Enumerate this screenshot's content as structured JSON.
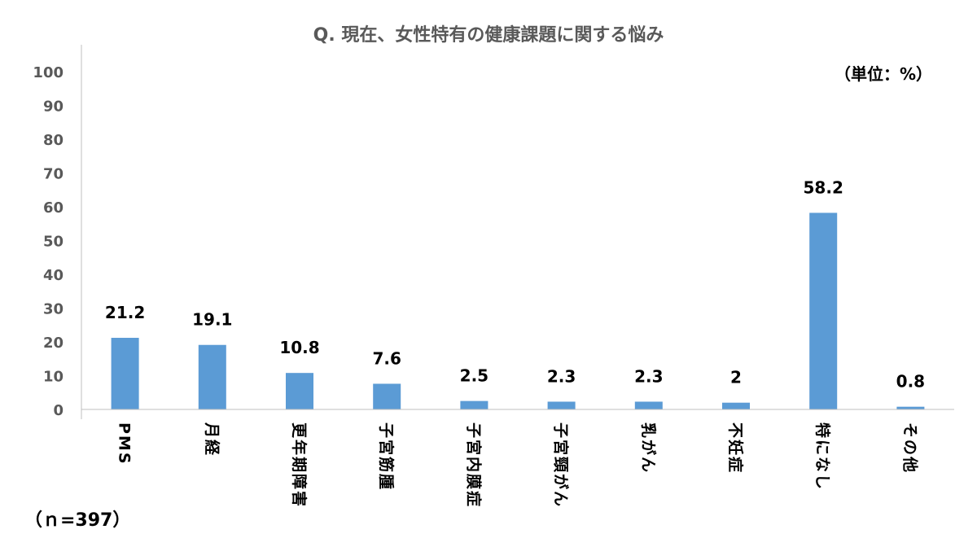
{
  "chart_data": {
    "type": "bar",
    "title": "Q. 現在、女性特有の健康課題に関する悩み",
    "unit_label": "（単位：%）",
    "sample_note": "（ｎ=397）",
    "categories": [
      "PMS",
      "月経",
      "更年期障害",
      "子宮筋腫",
      "子宮内膜症",
      "子宮頸がん",
      "乳がん",
      "不妊症",
      "特になし",
      "その他"
    ],
    "values": [
      21.2,
      19.1,
      10.8,
      7.6,
      2.5,
      2.3,
      2.3,
      2,
      58.2,
      0.8
    ],
    "value_labels": [
      "21.2",
      "19.1",
      "10.8",
      "7.6",
      "2.5",
      "2.3",
      "2.3",
      "2",
      "58.2",
      "0.8"
    ],
    "ylim": [
      0,
      100
    ],
    "yticks": [
      "0",
      "10",
      "20",
      "30",
      "40",
      "50",
      "60",
      "70",
      "80",
      "90",
      "100"
    ],
    "grid": false,
    "bar_color": "#5B9BD5"
  }
}
